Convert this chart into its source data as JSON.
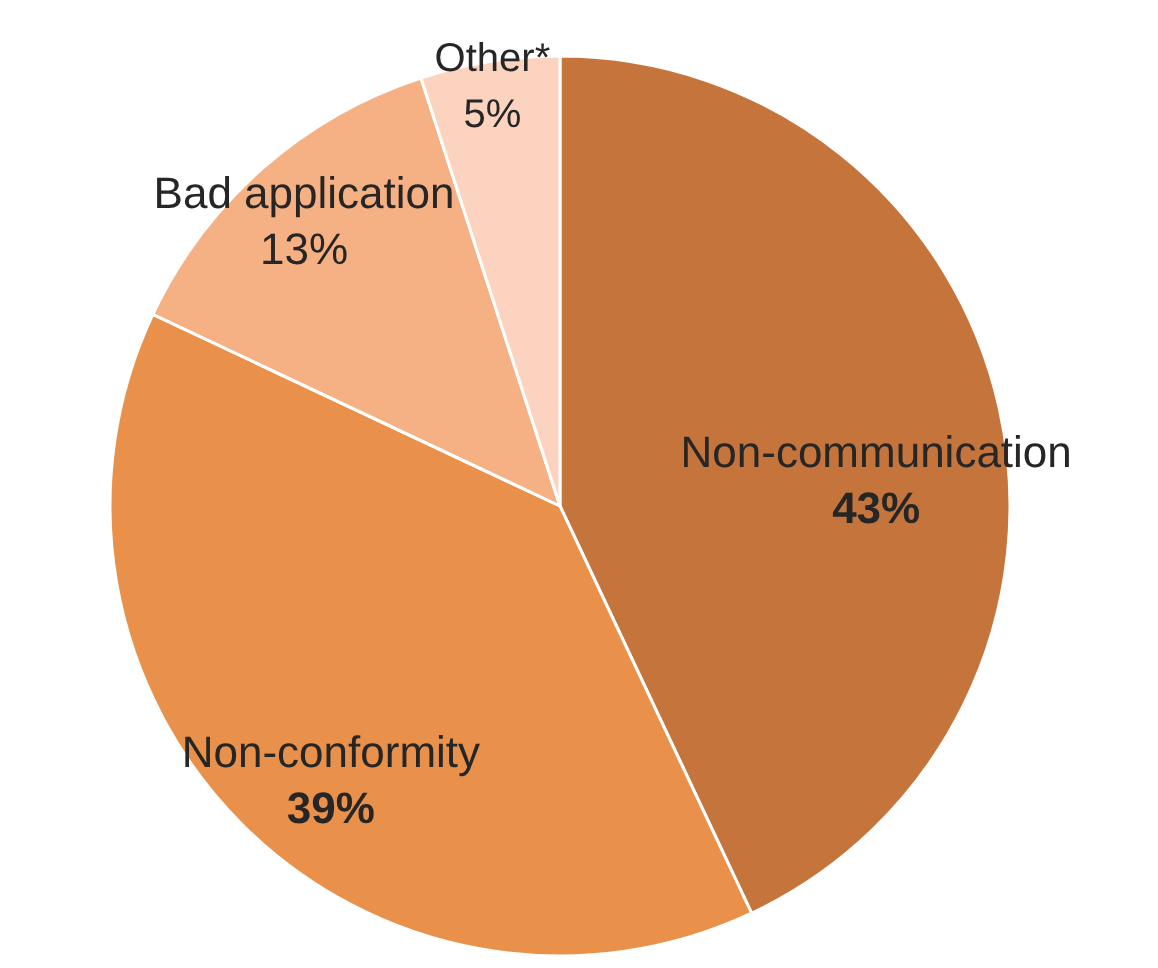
{
  "chart_data": {
    "type": "pie",
    "categories": [
      "Non-communication",
      "Non-conformity",
      "Bad application",
      "Other*"
    ],
    "values": [
      43,
      39,
      13,
      5
    ],
    "colors": [
      "#c5753c",
      "#e9914b",
      "#f5b183",
      "#fbd3bf"
    ],
    "value_labels": [
      "43%",
      "39%",
      "13%",
      "5%"
    ]
  }
}
